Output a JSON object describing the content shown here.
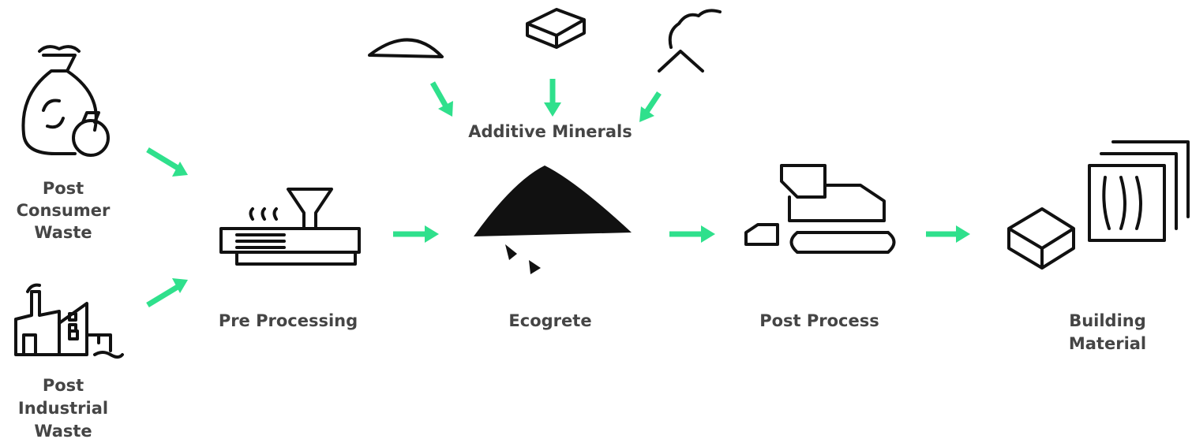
{
  "nodes": [
    {
      "label_lines": [
        "Post",
        "Consumer",
        "Waste"
      ]
    },
    {
      "label_lines": [
        "Post",
        "Industrial",
        "Waste"
      ]
    },
    {
      "label_lines": [
        "Pre Processing"
      ]
    },
    {
      "label_lines": [
        "Additive Minerals"
      ]
    },
    {
      "label_lines": [
        "Ecogrete"
      ]
    },
    {
      "label_lines": [
        "Post Process"
      ]
    },
    {
      "label_lines": [
        "Building",
        "Material"
      ]
    }
  ]
}
